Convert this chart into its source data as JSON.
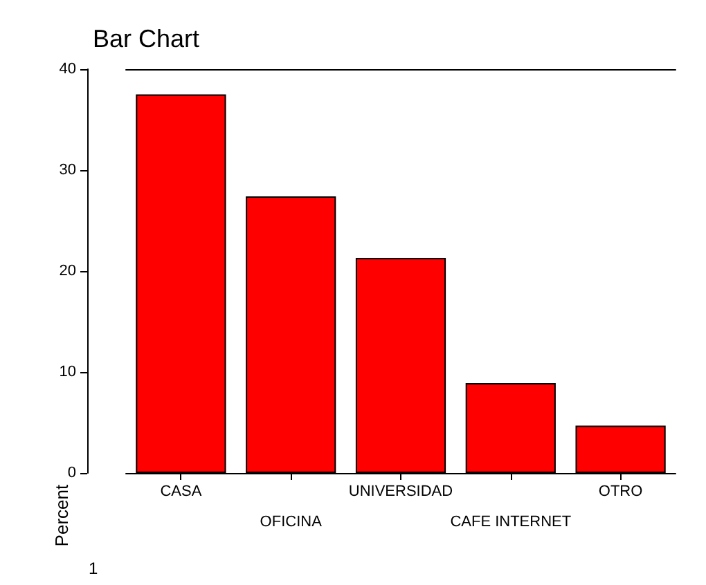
{
  "chart_data": {
    "type": "bar",
    "title": "Bar Chart",
    "ylabel": "Percent",
    "categories": [
      "CASA",
      "OFICINA",
      "UNIVERSIDAD",
      "CAFE INTERNET",
      "OTRO"
    ],
    "values": [
      37.5,
      27.4,
      21.3,
      8.9,
      4.7
    ],
    "color": "#ff0000",
    "ylim": [
      0,
      40
    ],
    "yticks": [
      0,
      10,
      20,
      30,
      40
    ],
    "grid": false,
    "annotations": [
      "1"
    ]
  }
}
